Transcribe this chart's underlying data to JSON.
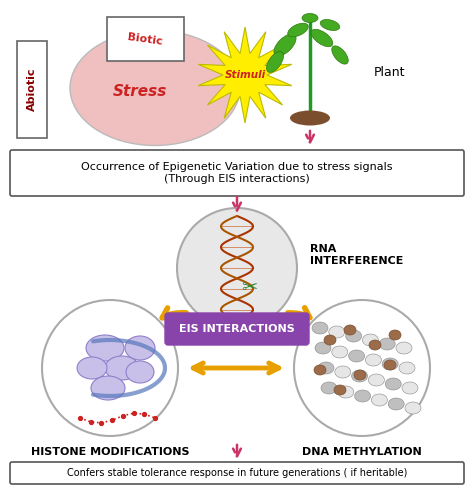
{
  "bg_color": "#ffffff",
  "box1_text": "Occurrence of Epigenetic Variation due to stress signals\n(Through EIS interactions)",
  "box2_text": "Confers stable tolerance response in future generations ( if heritable)",
  "eis_text": "EIS INTERACTIONS",
  "rna_label": "RNA\nINTERFERENCE",
  "histone_label": "HISTONE MODIFICATIONS",
  "dna_label": "DNA METHYLATION",
  "plant_label": "Plant",
  "stress_label": "Stress",
  "biotic_label": "Biotic",
  "abiotic_label": "Abiotic",
  "stimuli_label": "Stimuli",
  "arrow_color_pink": "#cc3366",
  "arrow_color_gold": "#e8a000",
  "eis_box_color": "#8844aa",
  "eis_text_color": "#ffffff",
  "stress_fill": "#f0c0c0",
  "stress_text_color": "#cc2222",
  "biotic_text_color": "#cc2222",
  "abiotic_text_color": "#880000",
  "stimuli_fill": "#ffee00",
  "stimuli_text_color": "#cc2222",
  "circle_fill": "#f0f0f0",
  "rna_circle_fill": "#e8e8e8",
  "font_size_small": 7,
  "font_size_med": 8,
  "font_size_large": 9,
  "font_size_stress": 11
}
